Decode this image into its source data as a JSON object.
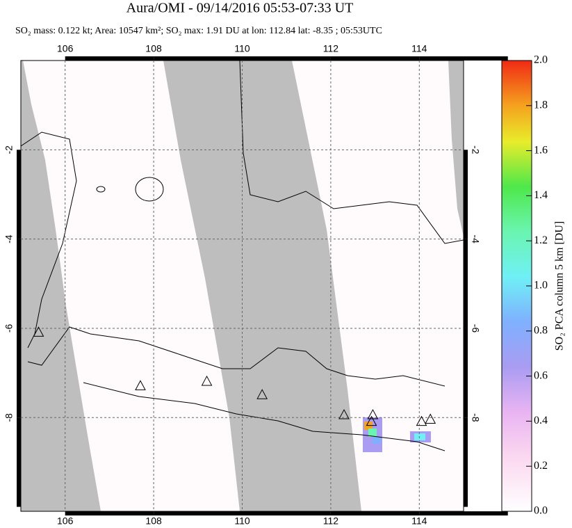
{
  "header": {
    "title": "Aura/OMI - 09/14/2016 05:53-07:33 UT",
    "subtitle": "SO₂ mass: 0.122 kt; Area: 10547 km²; SO₂ max: 1.91 DU at lon: 112.84 lat: -8.35 ; 05:53UTC"
  },
  "map": {
    "xlim": [
      105,
      115
    ],
    "ylim": [
      -10.1,
      0
    ],
    "xticks": [
      106,
      108,
      110,
      112,
      114
    ],
    "yticks": [
      -2,
      -4,
      -6,
      -8
    ],
    "volcanoes": {
      "lon": [
        105.4,
        107.7,
        109.2,
        110.45,
        112.3,
        112.95,
        112.92,
        114.05,
        114.25
      ],
      "lat": [
        -6.1,
        -7.3,
        -7.2,
        -7.5,
        -7.95,
        -7.95,
        -8.1,
        -8.1,
        -8.05
      ]
    }
  },
  "colorbar": {
    "label": "SO₂ PCA column 5 km [DU]",
    "lim": [
      0,
      2
    ],
    "ticks": [
      {
        "value": 0,
        "label": "0.0"
      },
      {
        "value": 0.2,
        "label": "0.2"
      },
      {
        "value": 0.4,
        "label": "0.4"
      },
      {
        "value": 0.6,
        "label": "0.6"
      },
      {
        "value": 0.8,
        "label": "0.8"
      },
      {
        "value": 1,
        "label": "1.0"
      },
      {
        "value": 1.2,
        "label": "1.2"
      },
      {
        "value": 1.4,
        "label": "1.4"
      },
      {
        "value": 1.6,
        "label": "1.6"
      },
      {
        "value": 1.8,
        "label": "1.8"
      },
      {
        "value": 2,
        "label": "2.0"
      }
    ]
  }
}
